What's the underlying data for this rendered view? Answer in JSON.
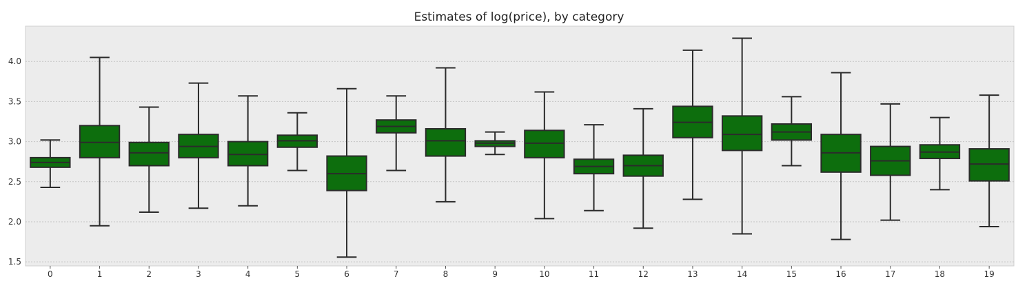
{
  "chart_data": {
    "type": "box",
    "title": "Estimates of log(price), by category",
    "xlabel": "",
    "ylabel": "",
    "ylim": [
      1.45,
      4.44
    ],
    "yticks": [
      "1.5",
      "2.0",
      "2.5",
      "3.0",
      "3.5",
      "4.0"
    ],
    "grid": true,
    "box_color": "#0d6e0d",
    "edge_color": "#2b2b2b",
    "background_color": "#ececec",
    "grid_color": "#c4c4c4",
    "categories": [
      "0",
      "1",
      "2",
      "3",
      "4",
      "5",
      "6",
      "7",
      "8",
      "9",
      "10",
      "11",
      "12",
      "13",
      "14",
      "15",
      "16",
      "17",
      "18",
      "19"
    ],
    "boxes": [
      {
        "category": "0",
        "whisker_low": 2.43,
        "q1": 2.68,
        "median": 2.74,
        "q3": 2.8,
        "whisker_high": 3.02
      },
      {
        "category": "1",
        "whisker_low": 1.95,
        "q1": 2.8,
        "median": 2.99,
        "q3": 3.2,
        "whisker_high": 4.05
      },
      {
        "category": "2",
        "whisker_low": 2.12,
        "q1": 2.7,
        "median": 2.86,
        "q3": 2.99,
        "whisker_high": 3.43
      },
      {
        "category": "3",
        "whisker_low": 2.17,
        "q1": 2.8,
        "median": 2.94,
        "q3": 3.09,
        "whisker_high": 3.73
      },
      {
        "category": "4",
        "whisker_low": 2.2,
        "q1": 2.7,
        "median": 2.84,
        "q3": 3.0,
        "whisker_high": 3.57
      },
      {
        "category": "5",
        "whisker_low": 2.64,
        "q1": 2.93,
        "median": 3.01,
        "q3": 3.08,
        "whisker_high": 3.36
      },
      {
        "category": "6",
        "whisker_low": 1.56,
        "q1": 2.39,
        "median": 2.6,
        "q3": 2.82,
        "whisker_high": 3.66
      },
      {
        "category": "7",
        "whisker_low": 2.64,
        "q1": 3.11,
        "median": 3.19,
        "q3": 3.27,
        "whisker_high": 3.57
      },
      {
        "category": "8",
        "whisker_low": 2.25,
        "q1": 2.82,
        "median": 3.01,
        "q3": 3.16,
        "whisker_high": 3.92
      },
      {
        "category": "9",
        "whisker_low": 2.84,
        "q1": 2.94,
        "median": 2.98,
        "q3": 3.01,
        "whisker_high": 3.12
      },
      {
        "category": "10",
        "whisker_low": 2.04,
        "q1": 2.8,
        "median": 2.98,
        "q3": 3.14,
        "whisker_high": 3.62
      },
      {
        "category": "11",
        "whisker_low": 2.14,
        "q1": 2.6,
        "median": 2.69,
        "q3": 2.78,
        "whisker_high": 3.21
      },
      {
        "category": "12",
        "whisker_low": 1.92,
        "q1": 2.57,
        "median": 2.7,
        "q3": 2.83,
        "whisker_high": 3.41
      },
      {
        "category": "13",
        "whisker_low": 2.28,
        "q1": 3.05,
        "median": 3.24,
        "q3": 3.44,
        "whisker_high": 4.14
      },
      {
        "category": "14",
        "whisker_low": 1.85,
        "q1": 2.89,
        "median": 3.09,
        "q3": 3.32,
        "whisker_high": 4.29
      },
      {
        "category": "15",
        "whisker_low": 2.7,
        "q1": 3.02,
        "median": 3.12,
        "q3": 3.22,
        "whisker_high": 3.56
      },
      {
        "category": "16",
        "whisker_low": 1.78,
        "q1": 2.62,
        "median": 2.86,
        "q3": 3.09,
        "whisker_high": 3.86
      },
      {
        "category": "17",
        "whisker_low": 2.02,
        "q1": 2.58,
        "median": 2.76,
        "q3": 2.94,
        "whisker_high": 3.47
      },
      {
        "category": "18",
        "whisker_low": 2.4,
        "q1": 2.79,
        "median": 2.87,
        "q3": 2.96,
        "whisker_high": 3.3
      },
      {
        "category": "19",
        "whisker_low": 1.94,
        "q1": 2.51,
        "median": 2.72,
        "q3": 2.91,
        "whisker_high": 3.58
      }
    ]
  }
}
